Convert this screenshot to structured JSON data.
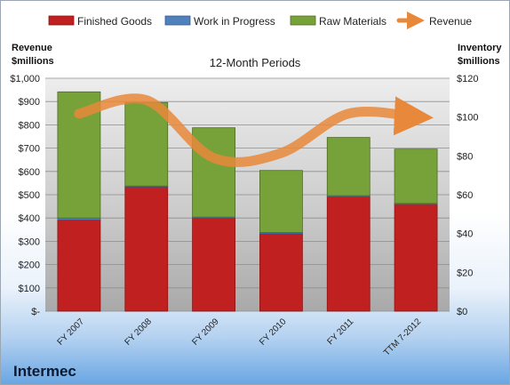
{
  "company": "Intermec",
  "chart_data": {
    "type": "bar",
    "title": "12-Month Periods",
    "categories": [
      "FY 2007",
      "FY 2008",
      "FY 2009",
      "FY 2010",
      "FY 2011",
      "TTM 7-2012"
    ],
    "stacked": true,
    "series": [
      {
        "name": "Finished Goods",
        "axis": "right",
        "color": "#c0201f",
        "values": [
          47,
          64,
          48,
          40,
          59,
          55
        ]
      },
      {
        "name": "Work in Progress",
        "axis": "right",
        "color": "#4f81bd",
        "values": [
          1,
          0.5,
          0.5,
          0.5,
          0.5,
          0.5
        ]
      },
      {
        "name": "Raw Materials",
        "axis": "right",
        "color": "#77a23a",
        "values": [
          65,
          43,
          46,
          32,
          30,
          28
        ]
      },
      {
        "name": "Revenue",
        "axis": "left",
        "type": "line",
        "color": "#e8883a",
        "values": [
          848,
          906,
          658,
          679,
          848,
          834
        ]
      }
    ],
    "left_axis": {
      "label_line1": "Revenue",
      "label_line2": "$millions",
      "ylim": [
        0,
        1000
      ],
      "ticks": [
        0,
        100,
        200,
        300,
        400,
        500,
        600,
        700,
        800,
        900,
        1000
      ],
      "tick_labels": [
        "$-",
        "$100",
        "$200",
        "$300",
        "$400",
        "$500",
        "$600",
        "$700",
        "$800",
        "$900",
        "$1,000"
      ]
    },
    "right_axis": {
      "label_line1": "Inventory",
      "label_line2": "$millions",
      "ylim": [
        0,
        120
      ],
      "ticks": [
        0,
        20,
        40,
        60,
        80,
        100,
        120
      ],
      "tick_labels": [
        "$0",
        "$20",
        "$40",
        "$60",
        "$80",
        "$100",
        "$120"
      ]
    },
    "legend_position": "top",
    "grid": true
  }
}
